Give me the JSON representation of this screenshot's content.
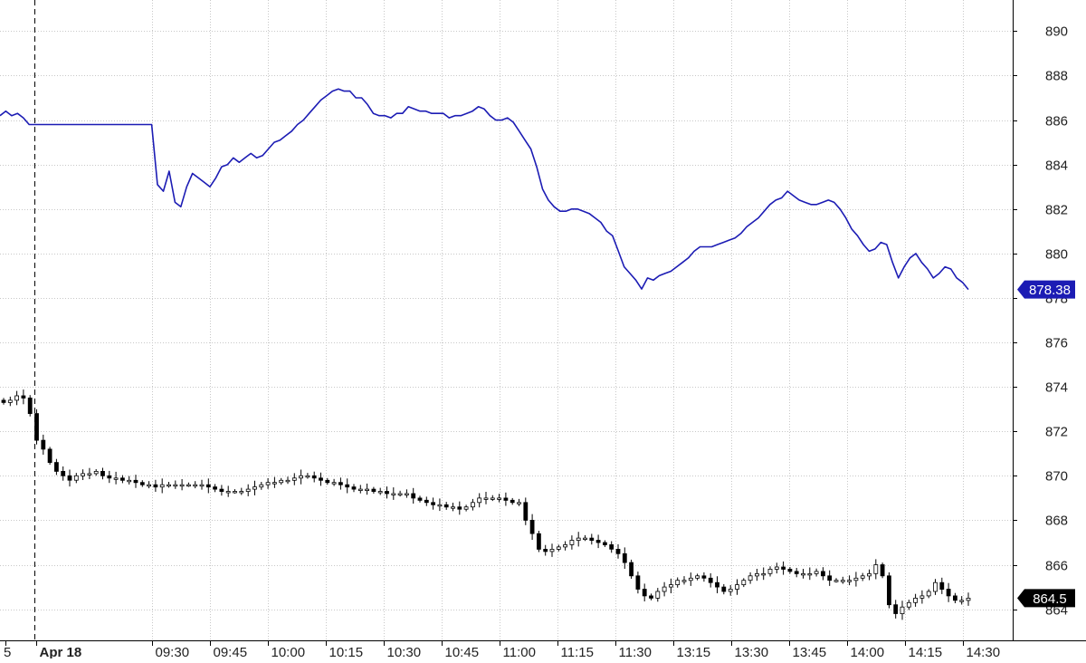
{
  "chart_data": {
    "type": "line",
    "ylim": [
      862.6,
      891.4
    ],
    "y_ticks": [
      890,
      888,
      886,
      884,
      882,
      880,
      878,
      876,
      874,
      872,
      870,
      868,
      866,
      864
    ],
    "x_tick_labels": [
      "5",
      "Apr 18",
      "09:30",
      "09:45",
      "10:00",
      "10:15",
      "10:30",
      "10:45",
      "11:00",
      "11:15",
      "11:30",
      "13:15",
      "13:30",
      "13:45",
      "14:00",
      "14:15",
      "14:30"
    ],
    "session_divider_label": "Apr 18",
    "grid": true,
    "series": [
      {
        "style": "line",
        "color": "#1c1cb4",
        "last_value_label": "878.38",
        "values": [
          886.2,
          886.4,
          886.2,
          886.3,
          886.1,
          885.8,
          885.8,
          885.8,
          885.8,
          885.8,
          885.8,
          885.8,
          885.8,
          885.8,
          885.8,
          885.8,
          885.8,
          885.8,
          885.8,
          885.8,
          885.8,
          885.8,
          885.8,
          885.8,
          885.8,
          885.8,
          885.8,
          883.1,
          882.8,
          883.7,
          882.3,
          882.1,
          883.0,
          883.6,
          883.4,
          883.2,
          883.0,
          883.4,
          883.9,
          884.0,
          884.3,
          884.1,
          884.3,
          884.5,
          884.3,
          884.4,
          884.7,
          885.0,
          885.1,
          885.3,
          885.5,
          885.8,
          886.0,
          886.3,
          886.6,
          886.9,
          887.1,
          887.3,
          887.4,
          887.3,
          887.3,
          887.0,
          887.0,
          886.7,
          886.3,
          886.2,
          886.2,
          886.1,
          886.3,
          886.3,
          886.6,
          886.5,
          886.4,
          886.4,
          886.3,
          886.3,
          886.3,
          886.1,
          886.2,
          886.2,
          886.3,
          886.4,
          886.6,
          886.5,
          886.2,
          886.0,
          886.0,
          886.1,
          885.9,
          885.5,
          885.1,
          884.7,
          883.9,
          882.9,
          882.4,
          882.1,
          881.9,
          881.9,
          882.0,
          882.0,
          881.9,
          881.8,
          881.6,
          881.4,
          881.0,
          880.8,
          880.1,
          879.4,
          879.1,
          878.8,
          878.4,
          878.9,
          878.8,
          879.0,
          879.1,
          879.2,
          879.4,
          879.6,
          879.8,
          880.1,
          880.3,
          880.3,
          880.3,
          880.4,
          880.5,
          880.6,
          880.7,
          880.9,
          881.2,
          881.4,
          881.6,
          881.9,
          882.2,
          882.4,
          882.5,
          882.8,
          882.6,
          882.4,
          882.3,
          882.2,
          882.2,
          882.3,
          882.4,
          882.3,
          882.0,
          881.6,
          881.1,
          880.8,
          880.4,
          880.1,
          880.2,
          880.5,
          880.4,
          879.6,
          878.9,
          879.4,
          879.8,
          880.0,
          879.6,
          879.3,
          878.9,
          879.1,
          879.4,
          879.3,
          878.9,
          878.7,
          878.38
        ]
      },
      {
        "style": "candlestick",
        "color": "#000000",
        "last_value_label": "864.5",
        "values": [
          873.3,
          873.4,
          873.6,
          873.5,
          872.8,
          871.6,
          871.2,
          870.6,
          870.2,
          870.0,
          869.8,
          870.0,
          870.1,
          870.1,
          870.2,
          870.0,
          869.9,
          869.9,
          869.8,
          869.8,
          869.7,
          869.6,
          869.6,
          869.5,
          869.6,
          869.6,
          869.6,
          869.6,
          869.6,
          869.6,
          869.6,
          869.5,
          869.4,
          869.3,
          869.3,
          869.3,
          869.3,
          869.4,
          869.5,
          869.6,
          869.7,
          869.7,
          869.8,
          869.8,
          869.9,
          870.0,
          870.0,
          869.9,
          869.8,
          869.7,
          869.7,
          869.6,
          869.5,
          869.4,
          869.4,
          869.4,
          869.3,
          869.3,
          869.2,
          869.2,
          869.2,
          869.2,
          869.0,
          868.9,
          868.8,
          868.7,
          868.7,
          868.6,
          868.6,
          868.5,
          868.6,
          868.8,
          869.0,
          869.0,
          869.0,
          869.0,
          868.9,
          868.8,
          868.8,
          868.0,
          867.4,
          866.7,
          866.6,
          866.7,
          866.8,
          866.9,
          867.1,
          867.2,
          867.2,
          867.1,
          867.0,
          866.9,
          866.7,
          866.5,
          866.1,
          865.5,
          864.9,
          864.6,
          864.5,
          864.8,
          865.0,
          865.1,
          865.3,
          865.3,
          865.4,
          865.5,
          865.4,
          865.2,
          865.0,
          864.8,
          864.9,
          865.1,
          865.3,
          865.5,
          865.6,
          865.6,
          865.8,
          865.9,
          865.8,
          865.7,
          865.6,
          865.6,
          865.6,
          865.7,
          865.5,
          865.3,
          865.3,
          865.3,
          865.3,
          865.4,
          865.5,
          865.6,
          866.0,
          865.5,
          864.2,
          863.8,
          864.1,
          864.3,
          864.5,
          864.6,
          864.8,
          865.2,
          864.9,
          864.6,
          864.4,
          864.4,
          864.5
        ]
      }
    ]
  }
}
